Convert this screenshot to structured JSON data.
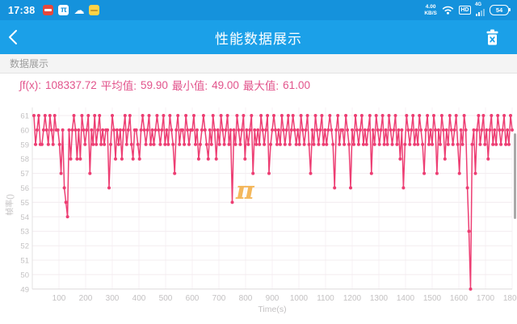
{
  "colors": {
    "status_bar_blue": "#1592DC",
    "header_blue": "#1BA0E8",
    "line_pink": "#ED3E73",
    "stats_pink": "#E2548C"
  },
  "status_bar": {
    "time": "17:38",
    "left_app_icons": [
      "video-app-icon",
      "pi-app-icon",
      "cloud-app-icon",
      "notes-app-icon"
    ],
    "pi_glyph": "π",
    "cloud_glyph": "☁",
    "network_speed_value": "4.00",
    "network_speed_unit": "KB/S",
    "right_icons": [
      "wifi-icon",
      "hd-icon",
      "signal-icon",
      "battery-icon"
    ],
    "hd_label": "HD",
    "signal_label": "4G",
    "battery_percent": "54"
  },
  "header": {
    "title": "性能数据展示",
    "icons": [
      "back-chevron-icon",
      "delete-trash-icon"
    ]
  },
  "section": {
    "title": "数据展示"
  },
  "stats": {
    "integral_label": "∫f(x):",
    "integral_value": "108337.72",
    "avg_label": "平均值:",
    "avg_value": "59.90",
    "min_label": "最小值:",
    "min_value": "49.00",
    "max_label": "最大值:",
    "max_value": "61.00"
  },
  "watermark": {
    "text": "π",
    "color": "#F2A52F"
  },
  "chart_data": {
    "type": "line",
    "title": "",
    "xlabel": "Time(s)",
    "ylabel": "帧率()",
    "legend": null,
    "grid": true,
    "x_max": 1800,
    "x_step_s": 6,
    "x_ticks": [
      100,
      200,
      300,
      400,
      500,
      600,
      700,
      800,
      900,
      1000,
      1100,
      1200,
      1300,
      1400,
      1500,
      1600,
      1700,
      1800
    ],
    "y_ticks": [
      61,
      60,
      59,
      58,
      57,
      56,
      55,
      54,
      53,
      52,
      51,
      50,
      49
    ],
    "ylim": [
      49,
      61
    ],
    "line_color": "#ED3E73",
    "dot_color": "#ED3E73",
    "axis_text_color": "#C3C1C2",
    "grid_color": "#F3ECEF",
    "values": [
      61,
      59,
      60,
      61,
      59,
      59,
      60,
      61,
      60,
      59,
      61,
      60,
      59,
      61,
      60,
      60,
      59,
      57,
      60,
      56,
      55,
      54,
      60,
      58,
      60,
      61,
      60,
      58,
      60,
      58,
      61,
      60,
      59,
      60,
      61,
      57,
      60,
      59,
      61,
      59,
      60,
      61,
      59,
      60,
      59,
      60,
      60,
      56,
      59,
      61,
      60,
      58,
      60,
      59,
      60,
      58,
      60,
      61,
      59,
      60,
      61,
      59,
      58,
      60,
      60,
      59,
      58,
      60,
      61,
      60,
      59,
      60,
      61,
      59,
      60,
      59,
      60,
      61,
      60,
      59,
      60,
      61,
      59,
      60,
      59,
      61,
      60,
      59,
      57,
      60,
      61,
      59,
      60,
      60,
      59,
      61,
      60,
      59,
      60,
      60,
      61,
      59,
      60,
      58,
      59,
      60,
      61,
      60,
      59,
      58,
      60,
      59,
      61,
      60,
      58,
      60,
      59,
      61,
      60,
      59,
      60,
      61,
      59,
      60,
      55,
      60,
      59,
      61,
      60,
      59,
      60,
      61,
      58,
      60,
      59,
      60,
      61,
      57,
      60,
      59,
      60,
      59,
      61,
      60,
      59,
      60,
      61,
      57,
      59,
      60,
      61,
      60,
      59,
      60,
      59,
      61,
      60,
      59,
      60,
      61,
      59,
      60,
      61,
      60,
      59,
      60,
      59,
      61,
      60,
      59,
      60,
      61,
      59,
      57,
      60,
      59,
      61,
      60,
      59,
      60,
      61,
      59,
      60,
      59,
      60,
      61,
      60,
      59,
      56,
      60,
      61,
      59,
      60,
      60,
      59,
      61,
      60,
      59,
      56,
      60,
      59,
      61,
      60,
      59,
      60,
      61,
      59,
      60,
      59,
      60,
      61,
      57,
      60,
      59,
      61,
      60,
      59,
      60,
      61,
      59,
      60,
      59,
      61,
      60,
      59,
      60,
      61,
      59,
      60,
      58,
      60,
      56,
      59,
      61,
      60,
      59,
      60,
      61,
      59,
      60,
      59,
      61,
      60,
      59,
      57,
      60,
      61,
      59,
      60,
      59,
      61,
      60,
      57,
      60,
      59,
      61,
      60,
      58,
      60,
      59,
      61,
      60,
      59,
      60,
      61,
      59,
      57,
      60,
      59,
      61,
      60,
      56,
      53,
      49,
      59,
      60,
      57,
      60,
      61,
      59,
      60,
      61,
      59,
      60,
      58,
      60,
      61,
      59,
      60,
      59,
      61,
      60,
      59,
      60,
      61,
      59,
      60,
      59,
      61,
      60
    ]
  }
}
